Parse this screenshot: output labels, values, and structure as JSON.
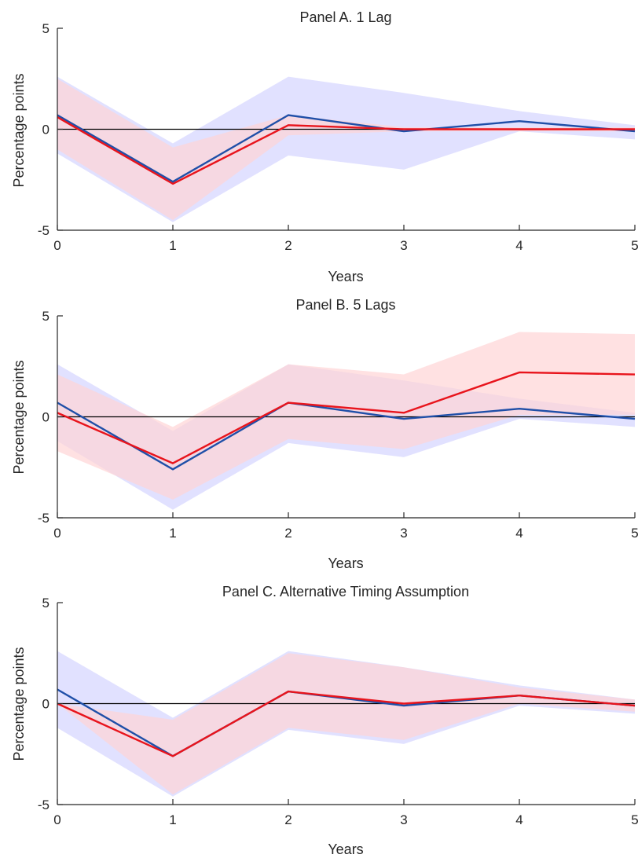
{
  "colors": {
    "blue_line": "#1f4fa8",
    "red_line": "#e8141c",
    "blue_band": "#dcdcff",
    "red_band": "#ffd4d6",
    "axis": "#262626",
    "zero_line": "#000000"
  },
  "chart_data": [
    {
      "type": "line",
      "title": "Panel A. 1 Lag",
      "xlabel": "Years",
      "ylabel": "Percentage points",
      "xlim": [
        0,
        5
      ],
      "ylim": [
        -5,
        5
      ],
      "xticks": [
        "0",
        "1",
        "2",
        "3",
        "4",
        "5"
      ],
      "yticks": [
        "-5",
        "0",
        "5"
      ],
      "grid": false,
      "reference_line": 0,
      "x": [
        0,
        1,
        2,
        3,
        4,
        5
      ],
      "series": [
        {
          "color": "blue",
          "values": [
            0.7,
            -2.6,
            0.7,
            -0.1,
            0.4,
            -0.1
          ],
          "lower": [
            -1.2,
            -4.6,
            -1.3,
            -2.0,
            -0.1,
            -0.5
          ],
          "upper": [
            2.6,
            -0.7,
            2.6,
            1.8,
            0.9,
            0.2
          ]
        },
        {
          "color": "red",
          "values": [
            0.6,
            -2.7,
            0.2,
            0.0,
            0.0,
            0.0
          ],
          "lower": [
            -1.0,
            -4.5,
            -0.3,
            -0.1,
            -0.1,
            -0.1
          ],
          "upper": [
            2.5,
            -0.9,
            0.7,
            0.1,
            0.1,
            0.1
          ]
        }
      ]
    },
    {
      "type": "line",
      "title": "Panel B. 5 Lags",
      "xlabel": "Years",
      "ylabel": "Percentage points",
      "xlim": [
        0,
        5
      ],
      "ylim": [
        -5,
        5
      ],
      "xticks": [
        "0",
        "1",
        "2",
        "3",
        "4",
        "5"
      ],
      "yticks": [
        "-5",
        "0",
        "5"
      ],
      "grid": false,
      "reference_line": 0,
      "x": [
        0,
        1,
        2,
        3,
        4,
        5
      ],
      "series": [
        {
          "color": "blue",
          "values": [
            0.7,
            -2.6,
            0.7,
            -0.1,
            0.4,
            -0.1
          ],
          "lower": [
            -1.2,
            -4.6,
            -1.3,
            -2.0,
            -0.1,
            -0.5
          ],
          "upper": [
            2.6,
            -0.7,
            2.6,
            1.8,
            0.9,
            0.2
          ]
        },
        {
          "color": "red",
          "values": [
            0.2,
            -2.3,
            0.7,
            0.2,
            2.2,
            2.1
          ],
          "lower": [
            -1.7,
            -4.1,
            -1.1,
            -1.6,
            0.1,
            0.1
          ],
          "upper": [
            2.1,
            -0.5,
            2.6,
            2.1,
            4.2,
            4.1
          ]
        }
      ]
    },
    {
      "type": "line",
      "title": "Panel C. Alternative Timing Assumption",
      "xlabel": "Years",
      "ylabel": "Percentage points",
      "xlim": [
        0,
        5
      ],
      "ylim": [
        -5,
        5
      ],
      "xticks": [
        "0",
        "1",
        "2",
        "3",
        "4",
        "5"
      ],
      "yticks": [
        "-5",
        "0",
        "5"
      ],
      "grid": false,
      "reference_line": 0,
      "x": [
        0,
        1,
        2,
        3,
        4,
        5
      ],
      "series": [
        {
          "color": "blue",
          "values": [
            0.7,
            -2.6,
            0.6,
            -0.1,
            0.4,
            -0.1
          ],
          "lower": [
            -1.2,
            -4.6,
            -1.3,
            -2.0,
            -0.1,
            -0.5
          ],
          "upper": [
            2.6,
            -0.7,
            2.6,
            1.8,
            0.9,
            0.2
          ]
        },
        {
          "color": "red",
          "values": [
            0.0,
            -2.6,
            0.6,
            0.0,
            0.4,
            -0.1
          ],
          "lower": [
            0.0,
            -4.5,
            -1.2,
            -1.8,
            0.0,
            -0.4
          ],
          "upper": [
            0.0,
            -0.8,
            2.5,
            1.8,
            0.8,
            0.2
          ]
        }
      ]
    }
  ]
}
